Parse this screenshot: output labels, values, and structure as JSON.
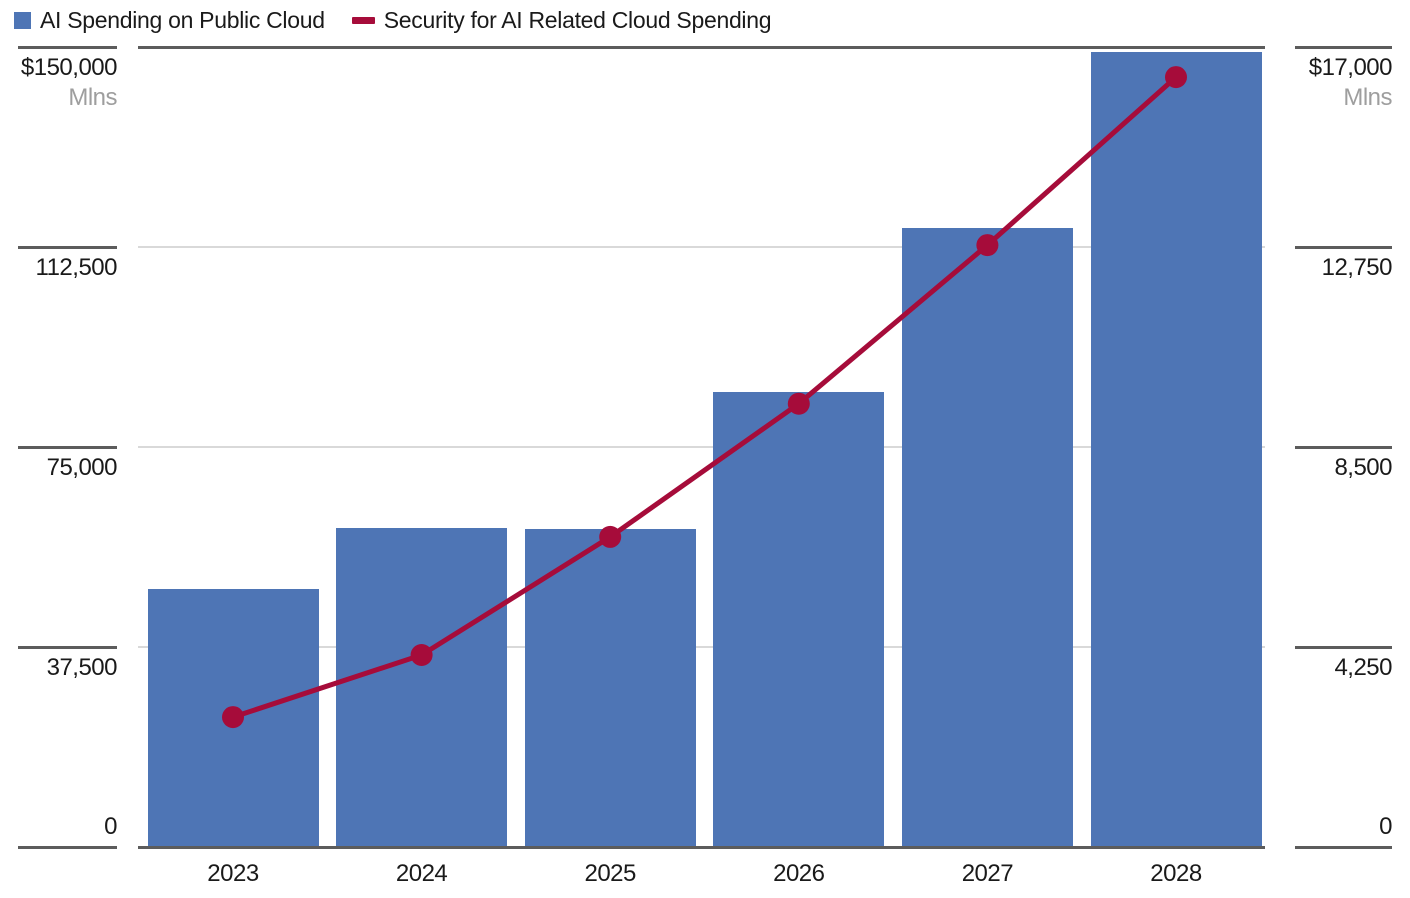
{
  "legend": {
    "position": "top-left",
    "items": [
      {
        "label": "AI Spending on Public Cloud",
        "marker": "square",
        "color": "#4e75b5"
      },
      {
        "label": "Security for AI Related Cloud Spending",
        "marker": "dash",
        "color": "#a60c3a"
      }
    ]
  },
  "chart_data": {
    "type": "bar+line",
    "title": "",
    "categories": [
      "2023",
      "2024",
      "2025",
      "2026",
      "2027",
      "2028"
    ],
    "series": [
      {
        "name": "AI Spending on Public Cloud",
        "type": "bar",
        "axis": "left",
        "color": "#4e75b5",
        "values": [
          48400,
          59900,
          59600,
          85300,
          116000,
          149000
        ]
      },
      {
        "name": "Security for AI Related Cloud Spending",
        "type": "line",
        "axis": "right",
        "color": "#a60c3a",
        "values": [
          2760,
          4080,
          6590,
          9420,
          12790,
          16360
        ]
      }
    ],
    "left_axis": {
      "unit": "Mlns",
      "range": [
        0,
        150000
      ],
      "tick_values": [
        150000,
        112500,
        75000,
        37500,
        0
      ],
      "tick_labels": [
        "$150,000",
        "112,500",
        "75,000",
        "37,500",
        "0"
      ]
    },
    "right_axis": {
      "unit": "Mlns",
      "range": [
        0,
        17000
      ],
      "tick_values": [
        17000,
        12750,
        8500,
        4250,
        0
      ],
      "tick_labels": [
        "$17,000",
        "12,750",
        "8,500",
        "4,250",
        "0"
      ]
    },
    "grid": true,
    "colors": {
      "grid_light": "#d9d9d9",
      "grid_dark": "#5c5c5c",
      "text": "#1a1a1a",
      "unit_text": "#9e9e9e"
    }
  }
}
